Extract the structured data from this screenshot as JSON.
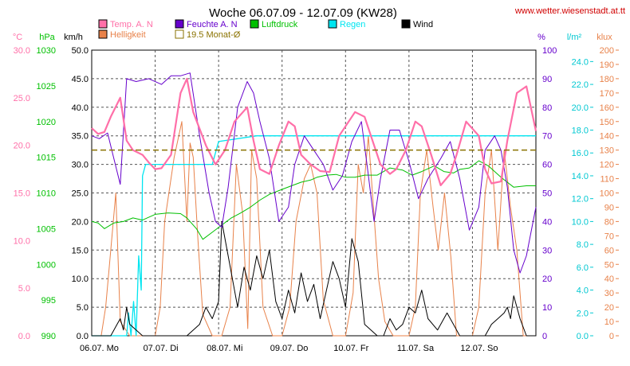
{
  "header": {
    "title": "Woche 06.07.09 - 12.07.09 (KW28)",
    "site": "www.wetter.wiesenstadt.at.tt"
  },
  "chart_data": {
    "type": "line",
    "x_unit": "days",
    "x_range": [
      0,
      7
    ],
    "x_tick_labels": [
      "06.07.  Mo",
      "07.07.  Di",
      "08.07.  Mi",
      "09.07.  Do",
      "10.07.  Fr",
      "11.07.  Sa",
      "12.07.  So"
    ],
    "grid": true,
    "legend_placement": "top",
    "axes": [
      {
        "id": "temp",
        "unit": "°C",
        "color": "#ff6fa8",
        "range": [
          0,
          30
        ],
        "ticks": [
          "0.0",
          "5.0",
          "10.0",
          "15.0",
          "20.0",
          "25.0",
          "30.0"
        ],
        "tick_values": [
          0,
          5,
          10,
          15,
          20,
          25,
          30
        ]
      },
      {
        "id": "hpa",
        "unit": "hPa",
        "color": "#00c000",
        "range": [
          990,
          1030
        ],
        "ticks": [
          "990",
          "995",
          "1000",
          "1005",
          "1010",
          "1015",
          "1020",
          "1025",
          "1030"
        ],
        "tick_values": [
          990,
          995,
          1000,
          1005,
          1010,
          1015,
          1020,
          1025,
          1030
        ]
      },
      {
        "id": "kmh",
        "unit": "km/h",
        "color": "#000000",
        "range": [
          0,
          50
        ],
        "ticks": [
          "0.0",
          "5.0",
          "10.0",
          "15.0",
          "20.0",
          "25.0",
          "30.0",
          "35.0",
          "40.0",
          "45.0",
          "50.0"
        ],
        "tick_values": [
          0,
          5,
          10,
          15,
          20,
          25,
          30,
          35,
          40,
          45,
          50
        ]
      },
      {
        "id": "pct",
        "unit": "%",
        "color": "#6600cc",
        "range": [
          0,
          100
        ],
        "ticks": [
          "0",
          "10",
          "20",
          "30",
          "40",
          "50",
          "60",
          "70",
          "80",
          "90",
          "100"
        ],
        "tick_values": [
          0,
          10,
          20,
          30,
          40,
          50,
          60,
          70,
          80,
          90,
          100
        ]
      },
      {
        "id": "lm2",
        "unit": "l/m²",
        "color": "#00c8d2",
        "range": [
          0,
          25
        ],
        "ticks": [
          "0.0",
          "2.0",
          "4.0",
          "6.0",
          "8.0",
          "10.0",
          "12.0",
          "14.0",
          "16.0",
          "18.0",
          "20.0",
          "22.0",
          "24.0"
        ],
        "tick_values": [
          0,
          2,
          4,
          6,
          8,
          10,
          12,
          14,
          16,
          18,
          20,
          22,
          24
        ]
      },
      {
        "id": "klux",
        "unit": "klux",
        "color": "#e8824a",
        "range": [
          0,
          200
        ],
        "ticks": [
          "0",
          "10",
          "20",
          "30",
          "40",
          "50",
          "60",
          "70",
          "80",
          "90",
          "100",
          "110",
          "120",
          "130",
          "140",
          "150",
          "160",
          "170",
          "180",
          "190",
          "200"
        ],
        "tick_values": [
          0,
          10,
          20,
          30,
          40,
          50,
          60,
          70,
          80,
          90,
          100,
          110,
          120,
          130,
          140,
          150,
          160,
          170,
          180,
          190,
          200
        ]
      }
    ],
    "series": [
      {
        "name": "Temp. A. N",
        "axis": "temp",
        "color": "#ff6fa8",
        "width": 2.2,
        "x": [
          0,
          0.1,
          0.2,
          0.3,
          0.45,
          0.55,
          0.65,
          0.8,
          0.9,
          1.0,
          1.1,
          1.25,
          1.4,
          1.5,
          1.6,
          1.8,
          1.95,
          2.1,
          2.25,
          2.45,
          2.55,
          2.65,
          2.8,
          2.95,
          3.1,
          3.2,
          3.3,
          3.45,
          3.6,
          3.75,
          3.9,
          4.0,
          4.15,
          4.3,
          4.4,
          4.55,
          4.7,
          4.8,
          4.95,
          5.1,
          5.2,
          5.35,
          5.5,
          5.65,
          5.75,
          5.9,
          6.1,
          6.2,
          6.3,
          6.45,
          6.55,
          6.7,
          6.85,
          7.0
        ],
        "y": [
          21.8,
          21.2,
          21.4,
          23.0,
          25.0,
          20.5,
          19.5,
          19.0,
          18.2,
          17.5,
          17.6,
          19.0,
          25.5,
          27.0,
          23.5,
          20.0,
          18.0,
          19.5,
          22.5,
          24.0,
          20.5,
          17.5,
          17.0,
          20.0,
          22.5,
          22.0,
          19.0,
          18.0,
          17.3,
          17.2,
          21.0,
          22.0,
          23.5,
          23.0,
          21.0,
          18.0,
          17.0,
          17.5,
          19.5,
          22.5,
          22.0,
          19.0,
          15.8,
          17.0,
          19.0,
          22.5,
          21.0,
          17.5,
          16.0,
          16.2,
          20.5,
          25.5,
          26.2,
          21.5
        ]
      },
      {
        "name": "Helligkeit",
        "axis": "klux",
        "color": "#e8824a",
        "width": 1,
        "x": [
          0,
          0.15,
          0.22,
          0.3,
          0.38,
          0.45,
          0.6,
          1.0,
          1.08,
          1.15,
          1.3,
          1.42,
          1.5,
          1.55,
          1.6,
          1.67,
          1.75,
          1.9,
          2.05,
          2.18,
          2.28,
          2.38,
          2.46,
          2.52,
          2.6,
          2.7,
          2.85,
          3.0,
          3.12,
          3.22,
          3.35,
          3.45,
          3.55,
          3.65,
          3.8,
          4.0,
          4.12,
          4.2,
          4.28,
          4.36,
          4.44,
          4.52,
          4.62,
          4.75,
          5.0,
          5.1,
          5.18,
          5.28,
          5.38,
          5.46,
          5.56,
          5.66,
          5.75,
          6.0,
          6.1,
          6.2,
          6.3,
          6.4,
          6.5,
          6.6,
          6.7,
          6.8,
          7.0
        ],
        "y": [
          0,
          0,
          20,
          60,
          100,
          10,
          0,
          0,
          20,
          80,
          125,
          150,
          80,
          135,
          125,
          70,
          15,
          0,
          0,
          20,
          120,
          85,
          5,
          130,
          110,
          20,
          0,
          0,
          20,
          80,
          110,
          120,
          100,
          25,
          0,
          0,
          30,
          120,
          100,
          140,
          90,
          40,
          10,
          0,
          0,
          20,
          100,
          130,
          90,
          60,
          100,
          55,
          0,
          0,
          20,
          100,
          130,
          60,
          130,
          90,
          60,
          0,
          0
        ]
      },
      {
        "name": "Feuchte A. N",
        "axis": "pct",
        "color": "#6600cc",
        "width": 1,
        "x": [
          0,
          0.12,
          0.25,
          0.35,
          0.45,
          0.55,
          0.7,
          0.9,
          1.1,
          1.25,
          1.4,
          1.55,
          1.7,
          1.85,
          1.95,
          2.05,
          2.15,
          2.3,
          2.45,
          2.55,
          2.65,
          2.8,
          2.95,
          3.1,
          3.2,
          3.35,
          3.5,
          3.65,
          3.8,
          3.95,
          4.1,
          4.25,
          4.35,
          4.45,
          4.55,
          4.7,
          4.85,
          5.0,
          5.15,
          5.3,
          5.5,
          5.65,
          5.8,
          5.95,
          6.1,
          6.2,
          6.35,
          6.45,
          6.55,
          6.65,
          6.75,
          6.85,
          7.0
        ],
        "y": [
          70,
          69,
          71,
          62,
          53,
          90,
          89,
          90,
          88,
          91,
          91,
          92,
          70,
          50,
          40,
          38,
          52,
          80,
          89,
          85,
          75,
          62,
          40,
          45,
          60,
          70,
          65,
          60,
          51,
          56,
          68,
          75,
          58,
          40,
          55,
          72,
          72,
          61,
          48,
          55,
          62,
          68,
          55,
          37,
          45,
          65,
          70,
          65,
          52,
          30,
          22,
          28,
          45
        ]
      },
      {
        "name": "Luftdruck",
        "axis": "hpa",
        "color": "#00c000",
        "width": 1,
        "x": [
          0,
          0.1,
          0.2,
          0.35,
          0.5,
          0.65,
          0.8,
          1.0,
          1.2,
          1.4,
          1.5,
          1.65,
          1.75,
          1.9,
          2.05,
          2.2,
          2.35,
          2.5,
          2.65,
          2.8,
          3.0,
          3.15,
          3.3,
          3.45,
          3.55,
          3.7,
          3.85,
          4.0,
          4.15,
          4.3,
          4.5,
          4.7,
          4.9,
          5.05,
          5.2,
          5.4,
          5.55,
          5.7,
          5.8,
          5.95,
          6.1,
          6.25,
          6.45,
          6.65,
          6.85,
          7.0
        ],
        "y": [
          1006,
          1005.8,
          1005,
          1005.8,
          1006,
          1006.5,
          1006.2,
          1007,
          1007.2,
          1007.1,
          1006.5,
          1005,
          1003.5,
          1004.5,
          1005.5,
          1006.5,
          1007.2,
          1008,
          1009,
          1009.8,
          1010.5,
          1011,
          1011.5,
          1011.8,
          1012.2,
          1012.5,
          1012.6,
          1012.2,
          1012.2,
          1012.5,
          1012.5,
          1013.5,
          1013.2,
          1012.5,
          1013,
          1013.8,
          1013,
          1012.8,
          1013.3,
          1013.5,
          1014.5,
          1013.8,
          1012.2,
          1010.8,
          1011,
          1011
        ]
      },
      {
        "name": "Regen",
        "axis": "lm2",
        "color": "#00e5f0",
        "width": 1.3,
        "x": [
          0,
          0.5,
          0.55,
          0.58,
          0.62,
          0.66,
          0.7,
          0.74,
          0.78,
          0.8,
          0.85,
          1.0,
          1.5,
          1.9,
          2.0,
          2.6,
          3.0,
          4.0,
          5.0,
          6.0,
          6.95,
          7.0
        ],
        "y": [
          0,
          0,
          0,
          2,
          0,
          3,
          0,
          7,
          4,
          14,
          15,
          15,
          15,
          15,
          17,
          17.5,
          17.5,
          17.5,
          17.5,
          17.5,
          17.5,
          17.5
        ]
      },
      {
        "name": "Wind",
        "axis": "kmh",
        "color": "#000000",
        "width": 1,
        "x": [
          0,
          0.3,
          0.4,
          0.45,
          0.5,
          0.55,
          0.6,
          0.7,
          0.8,
          0.9,
          1.0,
          1.5,
          1.7,
          1.8,
          1.9,
          2.0,
          2.05,
          2.15,
          2.3,
          2.4,
          2.5,
          2.6,
          2.7,
          2.8,
          2.9,
          3.0,
          3.1,
          3.2,
          3.3,
          3.4,
          3.5,
          3.6,
          3.7,
          3.8,
          3.9,
          4.0,
          4.1,
          4.2,
          4.3,
          4.5,
          4.6,
          4.7,
          4.8,
          4.9,
          5.0,
          5.1,
          5.2,
          5.3,
          5.45,
          5.6,
          5.7,
          5.8,
          6.0,
          6.2,
          6.3,
          6.4,
          6.5,
          6.55,
          6.6,
          6.65,
          6.75,
          6.85,
          7.0
        ],
        "y": [
          0,
          0,
          2,
          3,
          1,
          5,
          2,
          1,
          0,
          0,
          0,
          0,
          2,
          5,
          3,
          6,
          20,
          14,
          5,
          12,
          8,
          14,
          10,
          15,
          6,
          3,
          8,
          4,
          11,
          6,
          9,
          3,
          8,
          13,
          10,
          5,
          17,
          13,
          2,
          0,
          0,
          3,
          1,
          2,
          5,
          4,
          8,
          3,
          1,
          4,
          2,
          0,
          0,
          0,
          2,
          3,
          4,
          5,
          3,
          7,
          3,
          0,
          0
        ]
      }
    ],
    "reference_lines": [
      {
        "name": "19.5 Monat-Ø",
        "axis": "temp",
        "value": 19.5,
        "color": "#8a7200",
        "dashed": true
      }
    ]
  }
}
